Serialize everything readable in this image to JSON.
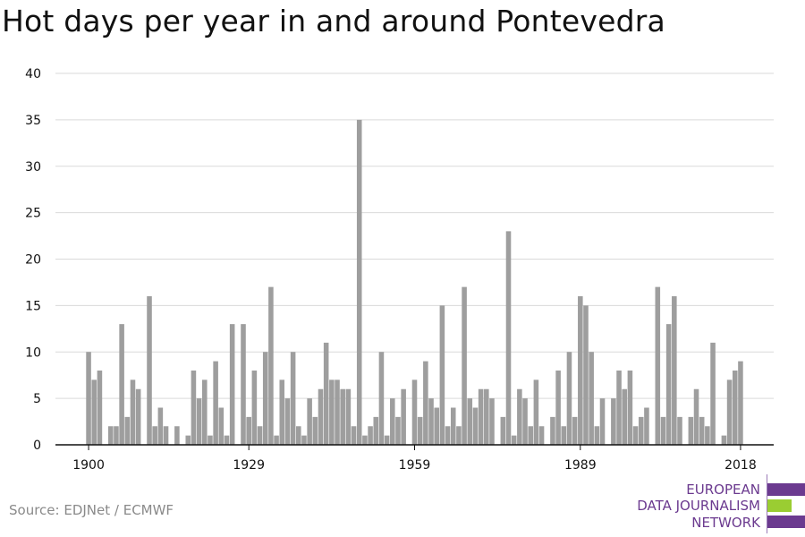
{
  "chart_data": {
    "type": "bar",
    "title": "Hot days per year in and around Pontevedra",
    "xlabel": "",
    "ylabel": "",
    "ylim": [
      0,
      40
    ],
    "y_ticks": [
      0,
      5,
      10,
      15,
      20,
      25,
      30,
      35,
      40
    ],
    "x_tick_labels": [
      "1900",
      "1929",
      "1959",
      "1989",
      "2018"
    ],
    "x_start_year": 1894,
    "x_end_year": 2024,
    "grid": true,
    "bar_color": "#9e9e9e",
    "series": [
      {
        "x": [
          1900,
          1901,
          1902,
          1903,
          1904,
          1905,
          1906,
          1907,
          1908,
          1909,
          1910,
          1911,
          1912,
          1913,
          1914,
          1915,
          1916,
          1917,
          1918,
          1919,
          1920,
          1921,
          1922,
          1923,
          1924,
          1925,
          1926,
          1927,
          1928,
          1929,
          1930,
          1931,
          1932,
          1933,
          1934,
          1935,
          1936,
          1937,
          1938,
          1939,
          1940,
          1941,
          1942,
          1943,
          1944,
          1945,
          1946,
          1947,
          1948,
          1949,
          1950,
          1951,
          1952,
          1953,
          1954,
          1955,
          1956,
          1957,
          1958,
          1959,
          1960,
          1961,
          1962,
          1963,
          1964,
          1965,
          1966,
          1967,
          1968,
          1969,
          1970,
          1971,
          1972,
          1973,
          1974,
          1975,
          1976,
          1977,
          1978,
          1979,
          1980,
          1981,
          1982,
          1983,
          1984,
          1985,
          1986,
          1987,
          1988,
          1989,
          1990,
          1991,
          1992,
          1993,
          1994,
          1995,
          1996,
          1997,
          1998,
          1999,
          2000,
          2001,
          2002,
          2003,
          2004,
          2005,
          2006,
          2007,
          2008,
          2009,
          2010,
          2011,
          2012,
          2013,
          2014,
          2015,
          2016,
          2017,
          2018
        ],
        "values": [
          10,
          7,
          8,
          0,
          2,
          2,
          13,
          3,
          7,
          6,
          0,
          16,
          2,
          4,
          2,
          0,
          2,
          0,
          1,
          8,
          5,
          7,
          1,
          9,
          4,
          1,
          13,
          0,
          13,
          3,
          8,
          2,
          10,
          17,
          1,
          7,
          5,
          10,
          2,
          1,
          5,
          3,
          6,
          11,
          7,
          7,
          6,
          6,
          2,
          35,
          1,
          2,
          3,
          10,
          1,
          5,
          3,
          6,
          0,
          7,
          3,
          9,
          5,
          4,
          15,
          2,
          4,
          2,
          17,
          5,
          4,
          6,
          6,
          5,
          0,
          3,
          23,
          1,
          6,
          5,
          2,
          7,
          2,
          0,
          3,
          8,
          2,
          10,
          3,
          16,
          15,
          10,
          2,
          5,
          0,
          5,
          8,
          6,
          8,
          2,
          3,
          4,
          0,
          17,
          3,
          13,
          16,
          3,
          0,
          3,
          6,
          3,
          2,
          11,
          0,
          1,
          7,
          8,
          9
        ]
      }
    ]
  },
  "source": "Source: EDJNet / ECMWF",
  "logo": {
    "line1": "EUROPEAN",
    "line2": "DATA JOURNALISM",
    "line3": "NETWORK",
    "purple": "#6b3a8f",
    "green": "#9acd32"
  }
}
